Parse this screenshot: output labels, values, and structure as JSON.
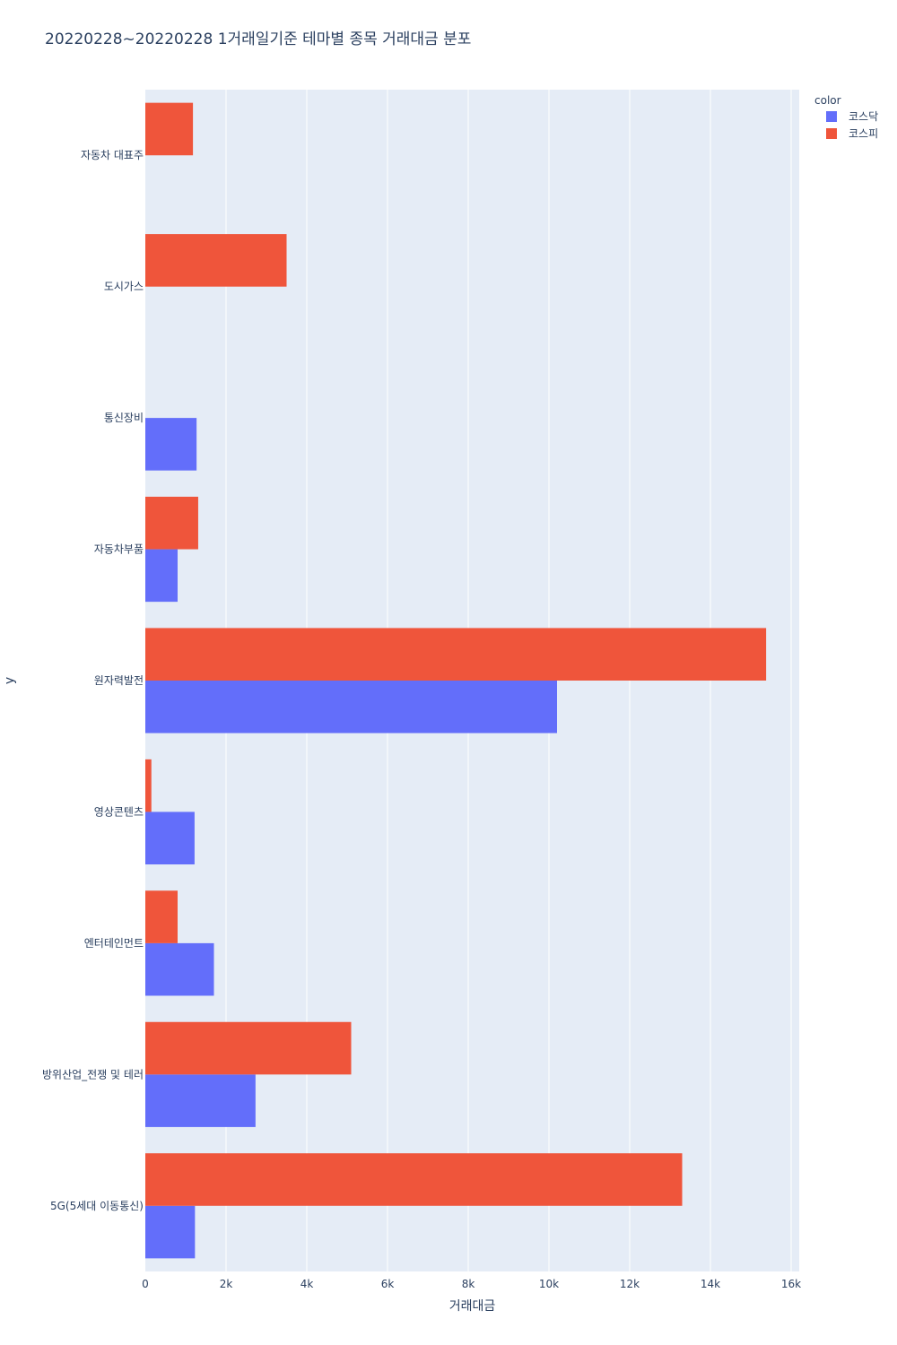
{
  "chart_data": {
    "type": "bar",
    "orientation": "horizontal",
    "title": "20220228~20220228 1거래일기준 테마별 종목 거래대금 분포",
    "xlabel": "거래대금",
    "ylabel": "y",
    "xlim": [
      0,
      16200
    ],
    "xticks": [
      {
        "value": 0,
        "label": "0"
      },
      {
        "value": 2000,
        "label": "2k"
      },
      {
        "value": 4000,
        "label": "4k"
      },
      {
        "value": 6000,
        "label": "6k"
      },
      {
        "value": 8000,
        "label": "8k"
      },
      {
        "value": 10000,
        "label": "10k"
      },
      {
        "value": 12000,
        "label": "12k"
      },
      {
        "value": 14000,
        "label": "14k"
      },
      {
        "value": 16000,
        "label": "16k"
      }
    ],
    "grid": true,
    "legend_title": "color",
    "legend_position": "top-right",
    "categories": [
      "자동차 대표주",
      "도시가스",
      "통신장비",
      "자동차부품",
      "원자력발전",
      "영상콘텐츠",
      "엔터테인먼트",
      "방위산업_전쟁 및 테러",
      "5G(5세대 이동통신)"
    ],
    "series": [
      {
        "name": "코스닥",
        "color": "#636efa",
        "values": [
          0,
          0,
          1270,
          800,
          10200,
          1220,
          1700,
          2730,
          1230
        ]
      },
      {
        "name": "코스피",
        "color": "#ef553b",
        "values": [
          1180,
          3500,
          0,
          1310,
          15380,
          150,
          800,
          5100,
          13300
        ]
      }
    ]
  }
}
